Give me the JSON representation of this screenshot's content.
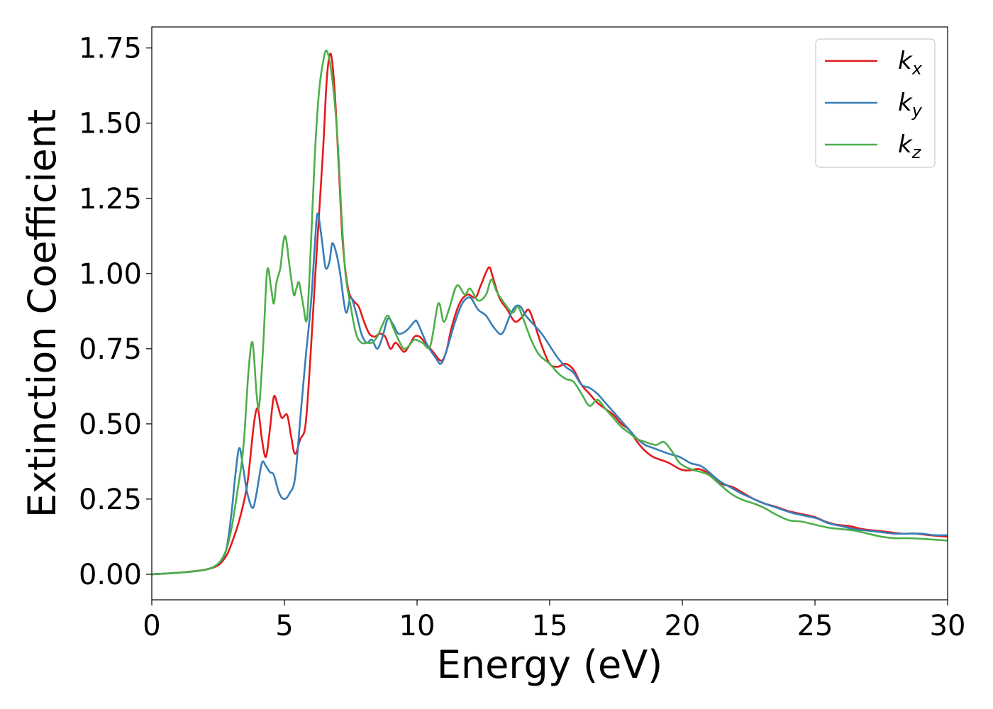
{
  "chart_data": {
    "type": "line",
    "title": "",
    "xlabel": "Energy (eV)",
    "ylabel": "Extinction Coefficient",
    "xlim": [
      0,
      30
    ],
    "ylim": [
      -0.085,
      1.82
    ],
    "xticks": [
      0,
      5,
      10,
      15,
      20,
      25,
      30
    ],
    "xtick_labels": [
      "0",
      "5",
      "10",
      "15",
      "20",
      "25",
      "30"
    ],
    "yticks": [
      0,
      0.25,
      0.5,
      0.75,
      1.0,
      1.25,
      1.5,
      1.75
    ],
    "ytick_labels": [
      "0.00",
      "0.25",
      "0.50",
      "0.75",
      "1.00",
      "1.25",
      "1.50",
      "1.75"
    ],
    "grid": false,
    "legend_position": "top-right",
    "series": [
      {
        "name": "kx",
        "label_main": "k",
        "label_sub": "x",
        "color": "#e41a1c",
        "points": [
          [
            0,
            0
          ],
          [
            1,
            0.005
          ],
          [
            2,
            0.015
          ],
          [
            2.5,
            0.03
          ],
          [
            2.8,
            0.06
          ],
          [
            3.0,
            0.1
          ],
          [
            3.3,
            0.18
          ],
          [
            3.6,
            0.3
          ],
          [
            3.85,
            0.5
          ],
          [
            4.0,
            0.55
          ],
          [
            4.15,
            0.45
          ],
          [
            4.3,
            0.39
          ],
          [
            4.45,
            0.48
          ],
          [
            4.6,
            0.59
          ],
          [
            4.75,
            0.56
          ],
          [
            4.9,
            0.52
          ],
          [
            5.1,
            0.53
          ],
          [
            5.25,
            0.46
          ],
          [
            5.4,
            0.4
          ],
          [
            5.6,
            0.45
          ],
          [
            5.8,
            0.5
          ],
          [
            6.0,
            0.75
          ],
          [
            6.2,
            1.05
          ],
          [
            6.45,
            1.4
          ],
          [
            6.6,
            1.65
          ],
          [
            6.75,
            1.73
          ],
          [
            6.9,
            1.6
          ],
          [
            7.05,
            1.35
          ],
          [
            7.2,
            1.1
          ],
          [
            7.4,
            0.95
          ],
          [
            7.6,
            0.91
          ],
          [
            7.8,
            0.89
          ],
          [
            8.0,
            0.84
          ],
          [
            8.2,
            0.8
          ],
          [
            8.4,
            0.79
          ],
          [
            8.6,
            0.8
          ],
          [
            8.8,
            0.79
          ],
          [
            9.0,
            0.75
          ],
          [
            9.2,
            0.77
          ],
          [
            9.5,
            0.74
          ],
          [
            9.7,
            0.76
          ],
          [
            9.9,
            0.79
          ],
          [
            10.1,
            0.79
          ],
          [
            10.3,
            0.77
          ],
          [
            10.6,
            0.74
          ],
          [
            10.9,
            0.71
          ],
          [
            11.1,
            0.74
          ],
          [
            11.3,
            0.82
          ],
          [
            11.6,
            0.9
          ],
          [
            11.9,
            0.93
          ],
          [
            12.2,
            0.92
          ],
          [
            12.4,
            0.96
          ],
          [
            12.7,
            1.02
          ],
          [
            12.85,
            0.99
          ],
          [
            13.1,
            0.92
          ],
          [
            13.4,
            0.88
          ],
          [
            13.7,
            0.84
          ],
          [
            14.0,
            0.86
          ],
          [
            14.2,
            0.88
          ],
          [
            14.4,
            0.84
          ],
          [
            14.7,
            0.76
          ],
          [
            15.0,
            0.7
          ],
          [
            15.3,
            0.69
          ],
          [
            15.6,
            0.7
          ],
          [
            15.9,
            0.68
          ],
          [
            16.2,
            0.63
          ],
          [
            16.5,
            0.6
          ],
          [
            16.8,
            0.57
          ],
          [
            17.1,
            0.55
          ],
          [
            17.4,
            0.53
          ],
          [
            17.7,
            0.5
          ],
          [
            18.0,
            0.48
          ],
          [
            18.3,
            0.44
          ],
          [
            18.6,
            0.41
          ],
          [
            18.9,
            0.39
          ],
          [
            19.2,
            0.38
          ],
          [
            19.5,
            0.37
          ],
          [
            19.9,
            0.35
          ],
          [
            20.2,
            0.345
          ],
          [
            20.6,
            0.35
          ],
          [
            20.9,
            0.34
          ],
          [
            21.2,
            0.32
          ],
          [
            21.5,
            0.3
          ],
          [
            21.9,
            0.29
          ],
          [
            22.3,
            0.27
          ],
          [
            22.7,
            0.25
          ],
          [
            23.1,
            0.235
          ],
          [
            23.5,
            0.225
          ],
          [
            24.0,
            0.21
          ],
          [
            24.5,
            0.2
          ],
          [
            25.0,
            0.19
          ],
          [
            25.4,
            0.175
          ],
          [
            25.8,
            0.165
          ],
          [
            26.3,
            0.16
          ],
          [
            26.8,
            0.15
          ],
          [
            27.3,
            0.145
          ],
          [
            27.8,
            0.14
          ],
          [
            28.3,
            0.135
          ],
          [
            28.8,
            0.135
          ],
          [
            29.3,
            0.13
          ],
          [
            30,
            0.125
          ]
        ]
      },
      {
        "name": "ky",
        "label_main": "k",
        "label_sub": "y",
        "color": "#377eb8",
        "points": [
          [
            0,
            0
          ],
          [
            1,
            0.005
          ],
          [
            2,
            0.015
          ],
          [
            2.5,
            0.035
          ],
          [
            2.8,
            0.08
          ],
          [
            3.0,
            0.2
          ],
          [
            3.15,
            0.33
          ],
          [
            3.3,
            0.42
          ],
          [
            3.45,
            0.35
          ],
          [
            3.6,
            0.27
          ],
          [
            3.8,
            0.22
          ],
          [
            3.95,
            0.27
          ],
          [
            4.15,
            0.37
          ],
          [
            4.3,
            0.36
          ],
          [
            4.45,
            0.34
          ],
          [
            4.6,
            0.33
          ],
          [
            4.8,
            0.27
          ],
          [
            5.0,
            0.25
          ],
          [
            5.2,
            0.27
          ],
          [
            5.4,
            0.32
          ],
          [
            5.6,
            0.52
          ],
          [
            5.8,
            0.72
          ],
          [
            6.0,
            0.9
          ],
          [
            6.15,
            1.1
          ],
          [
            6.25,
            1.2
          ],
          [
            6.4,
            1.12
          ],
          [
            6.55,
            1.02
          ],
          [
            6.7,
            1.04
          ],
          [
            6.8,
            1.1
          ],
          [
            6.95,
            1.07
          ],
          [
            7.1,
            1.0
          ],
          [
            7.25,
            0.9
          ],
          [
            7.35,
            0.87
          ],
          [
            7.5,
            0.92
          ],
          [
            7.7,
            0.87
          ],
          [
            7.9,
            0.8
          ],
          [
            8.1,
            0.77
          ],
          [
            8.3,
            0.78
          ],
          [
            8.5,
            0.75
          ],
          [
            8.7,
            0.79
          ],
          [
            8.9,
            0.85
          ],
          [
            9.1,
            0.83
          ],
          [
            9.3,
            0.8
          ],
          [
            9.6,
            0.81
          ],
          [
            9.9,
            0.84
          ],
          [
            10.0,
            0.84
          ],
          [
            10.2,
            0.8
          ],
          [
            10.4,
            0.76
          ],
          [
            10.7,
            0.72
          ],
          [
            10.9,
            0.7
          ],
          [
            11.1,
            0.74
          ],
          [
            11.4,
            0.83
          ],
          [
            11.7,
            0.9
          ],
          [
            12.0,
            0.92
          ],
          [
            12.3,
            0.88
          ],
          [
            12.6,
            0.86
          ],
          [
            12.9,
            0.82
          ],
          [
            13.2,
            0.8
          ],
          [
            13.5,
            0.86
          ],
          [
            13.7,
            0.89
          ],
          [
            13.9,
            0.89
          ],
          [
            14.1,
            0.86
          ],
          [
            14.4,
            0.83
          ],
          [
            14.7,
            0.8
          ],
          [
            15.0,
            0.76
          ],
          [
            15.3,
            0.72
          ],
          [
            15.6,
            0.69
          ],
          [
            15.9,
            0.67
          ],
          [
            16.2,
            0.63
          ],
          [
            16.5,
            0.62
          ],
          [
            16.8,
            0.6
          ],
          [
            17.1,
            0.57
          ],
          [
            17.4,
            0.54
          ],
          [
            17.7,
            0.51
          ],
          [
            18.0,
            0.48
          ],
          [
            18.3,
            0.45
          ],
          [
            18.6,
            0.43
          ],
          [
            18.9,
            0.42
          ],
          [
            19.2,
            0.41
          ],
          [
            19.5,
            0.4
          ],
          [
            19.9,
            0.39
          ],
          [
            20.3,
            0.37
          ],
          [
            20.7,
            0.36
          ],
          [
            21.0,
            0.34
          ],
          [
            21.4,
            0.31
          ],
          [
            21.8,
            0.29
          ],
          [
            22.2,
            0.27
          ],
          [
            22.7,
            0.25
          ],
          [
            23.1,
            0.235
          ],
          [
            23.6,
            0.22
          ],
          [
            24.1,
            0.205
          ],
          [
            24.6,
            0.195
          ],
          [
            25.1,
            0.185
          ],
          [
            25.5,
            0.17
          ],
          [
            26.0,
            0.16
          ],
          [
            26.5,
            0.15
          ],
          [
            27.0,
            0.145
          ],
          [
            27.5,
            0.14
          ],
          [
            28.0,
            0.135
          ],
          [
            28.5,
            0.135
          ],
          [
            29.0,
            0.135
          ],
          [
            29.5,
            0.13
          ],
          [
            30,
            0.13
          ]
        ]
      },
      {
        "name": "kz",
        "label_main": "k",
        "label_sub": "z",
        "color": "#4daf4a",
        "points": [
          [
            0,
            0
          ],
          [
            1,
            0.005
          ],
          [
            2,
            0.015
          ],
          [
            2.5,
            0.035
          ],
          [
            2.8,
            0.08
          ],
          [
            3.0,
            0.15
          ],
          [
            3.2,
            0.26
          ],
          [
            3.45,
            0.42
          ],
          [
            3.65,
            0.68
          ],
          [
            3.8,
            0.77
          ],
          [
            3.95,
            0.6
          ],
          [
            4.05,
            0.56
          ],
          [
            4.2,
            0.76
          ],
          [
            4.35,
            1.01
          ],
          [
            4.5,
            0.95
          ],
          [
            4.6,
            0.9
          ],
          [
            4.7,
            0.97
          ],
          [
            4.85,
            1.02
          ],
          [
            4.95,
            1.1
          ],
          [
            5.05,
            1.12
          ],
          [
            5.2,
            1.02
          ],
          [
            5.35,
            0.93
          ],
          [
            5.45,
            0.95
          ],
          [
            5.55,
            0.97
          ],
          [
            5.7,
            0.9
          ],
          [
            5.85,
            0.85
          ],
          [
            6.0,
            1.1
          ],
          [
            6.15,
            1.4
          ],
          [
            6.3,
            1.6
          ],
          [
            6.45,
            1.7
          ],
          [
            6.6,
            1.74
          ],
          [
            6.8,
            1.65
          ],
          [
            7.0,
            1.45
          ],
          [
            7.15,
            1.2
          ],
          [
            7.3,
            1.0
          ],
          [
            7.5,
            0.89
          ],
          [
            7.7,
            0.8
          ],
          [
            7.9,
            0.77
          ],
          [
            8.1,
            0.77
          ],
          [
            8.3,
            0.77
          ],
          [
            8.5,
            0.79
          ],
          [
            8.7,
            0.83
          ],
          [
            8.9,
            0.86
          ],
          [
            9.1,
            0.82
          ],
          [
            9.3,
            0.78
          ],
          [
            9.5,
            0.75
          ],
          [
            9.7,
            0.76
          ],
          [
            9.9,
            0.78
          ],
          [
            10.2,
            0.77
          ],
          [
            10.5,
            0.76
          ],
          [
            10.8,
            0.9
          ],
          [
            11.0,
            0.84
          ],
          [
            11.2,
            0.88
          ],
          [
            11.5,
            0.96
          ],
          [
            11.8,
            0.93
          ],
          [
            12.0,
            0.95
          ],
          [
            12.3,
            0.91
          ],
          [
            12.6,
            0.93
          ],
          [
            12.8,
            0.98
          ],
          [
            13.0,
            0.94
          ],
          [
            13.3,
            0.9
          ],
          [
            13.6,
            0.87
          ],
          [
            13.8,
            0.89
          ],
          [
            14.0,
            0.85
          ],
          [
            14.3,
            0.78
          ],
          [
            14.6,
            0.73
          ],
          [
            15.0,
            0.7
          ],
          [
            15.3,
            0.67
          ],
          [
            15.6,
            0.65
          ],
          [
            15.9,
            0.64
          ],
          [
            16.2,
            0.6
          ],
          [
            16.5,
            0.56
          ],
          [
            16.8,
            0.58
          ],
          [
            17.1,
            0.55
          ],
          [
            17.4,
            0.52
          ],
          [
            17.7,
            0.49
          ],
          [
            18.0,
            0.47
          ],
          [
            18.3,
            0.45
          ],
          [
            18.6,
            0.44
          ],
          [
            19.0,
            0.43
          ],
          [
            19.3,
            0.44
          ],
          [
            19.6,
            0.41
          ],
          [
            19.9,
            0.37
          ],
          [
            20.3,
            0.35
          ],
          [
            20.7,
            0.34
          ],
          [
            21.0,
            0.33
          ],
          [
            21.4,
            0.3
          ],
          [
            21.8,
            0.27
          ],
          [
            22.2,
            0.25
          ],
          [
            22.7,
            0.235
          ],
          [
            23.1,
            0.22
          ],
          [
            23.5,
            0.2
          ],
          [
            24.0,
            0.18
          ],
          [
            24.5,
            0.175
          ],
          [
            25.0,
            0.165
          ],
          [
            25.5,
            0.155
          ],
          [
            26.0,
            0.15
          ],
          [
            26.5,
            0.145
          ],
          [
            27.0,
            0.135
          ],
          [
            27.5,
            0.125
          ],
          [
            28.0,
            0.12
          ],
          [
            28.5,
            0.12
          ],
          [
            29.0,
            0.118
          ],
          [
            29.5,
            0.115
          ],
          [
            30,
            0.112
          ]
        ]
      }
    ]
  }
}
